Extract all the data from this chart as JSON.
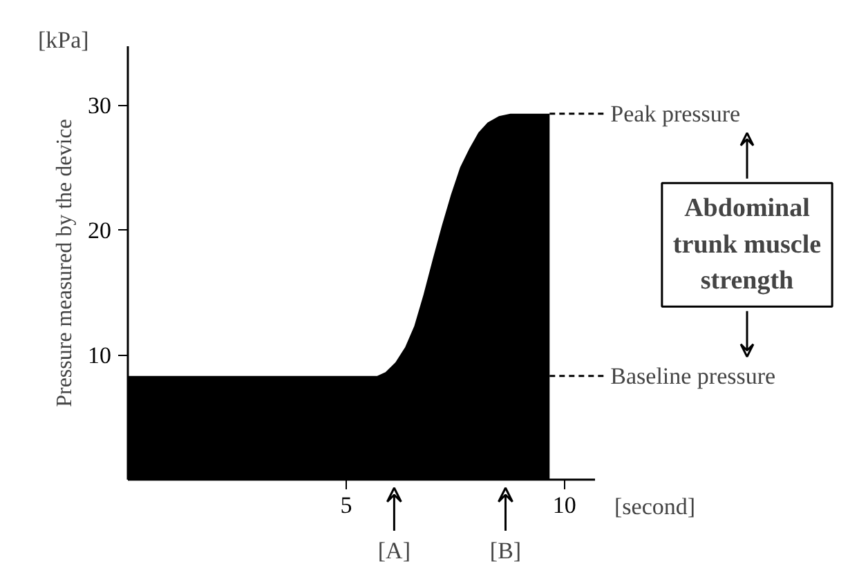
{
  "chart_data": {
    "type": "area",
    "xlabel": "[second]",
    "ylabel": "Pressure measured by the device",
    "x": [
      0,
      1,
      2,
      3,
      4,
      5,
      5.5,
      5.71,
      5.9,
      6.13,
      6.35,
      6.56,
      6.77,
      6.98,
      7.19,
      7.4,
      7.61,
      7.82,
      8.03,
      8.24,
      8.5,
      8.76,
      9.2,
      9.66
    ],
    "series": [
      {
        "color": "#000000",
        "values": [
          8.3,
          8.3,
          8.3,
          8.3,
          8.3,
          8.3,
          8.3,
          8.3,
          8.6,
          9.4,
          10.6,
          12.3,
          14.8,
          17.6,
          20.3,
          22.8,
          25.0,
          26.5,
          27.8,
          28.6,
          29.1,
          29.3,
          29.3,
          29.3
        ]
      }
    ],
    "xlim": [
      0,
      10.7
    ],
    "ylim": [
      0,
      34.7
    ],
    "xticks": [
      5,
      10
    ],
    "yticks": [
      10,
      20,
      30
    ],
    "grid": false,
    "ref_lines": [
      {
        "axis": "y",
        "value": 29.3,
        "label": "Peak pressure",
        "line_style": "dashed"
      },
      {
        "axis": "y",
        "value": 8.3,
        "label": "Baseline pressure",
        "line_style": "dashed"
      }
    ],
    "annotations": [
      "[kPa]",
      "Abdominal\ntrunk muscle\nstrength",
      {
        "text": "[A]",
        "x": 6.1,
        "y": 0
      },
      {
        "text": "[B]",
        "x": 8.65,
        "y": 0
      }
    ]
  }
}
